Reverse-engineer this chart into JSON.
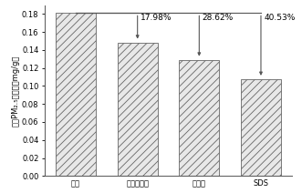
{
  "categories": [
    "原營",
    "蒙脉石原矿",
    "羟基铝",
    "SDS"
  ],
  "values": [
    0.181,
    0.1485,
    0.1292,
    0.1077
  ],
  "ref_value": 0.181,
  "percentages": [
    "17.98%",
    "28.62%",
    "40.53%"
  ],
  "bar_color": "#e8e8e8",
  "hatch": "////",
  "hatch_color": "#aaaaaa",
  "ylabel": "细營PM₂.₅生成量，mg/g營",
  "ylim": [
    0.0,
    0.19
  ],
  "yticks": [
    0.0,
    0.02,
    0.04,
    0.06,
    0.08,
    0.1,
    0.12,
    0.14,
    0.16,
    0.18
  ],
  "annotation_fontsize": 6.5,
  "label_fontsize": 6,
  "ylabel_fontsize": 6,
  "background_color": "#ffffff",
  "line_color": "#555555",
  "bar_edge_color": "#666666",
  "bar_width": 0.65
}
